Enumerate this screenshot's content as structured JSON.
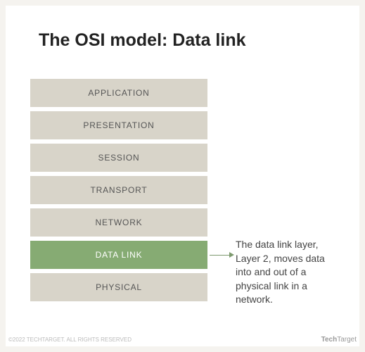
{
  "title": "The OSI model: Data link",
  "layers": [
    {
      "label": "APPLICATION",
      "bg": "#d8d4c9",
      "fg": "#555555",
      "highlight": false
    },
    {
      "label": "PRESENTATION",
      "bg": "#d8d4c9",
      "fg": "#555555",
      "highlight": false
    },
    {
      "label": "SESSION",
      "bg": "#d8d4c9",
      "fg": "#555555",
      "highlight": false
    },
    {
      "label": "TRANSPORT",
      "bg": "#d8d4c9",
      "fg": "#555555",
      "highlight": false
    },
    {
      "label": "NETWORK",
      "bg": "#d8d4c9",
      "fg": "#555555",
      "highlight": false
    },
    {
      "label": "DATA LINK",
      "bg": "#86ab73",
      "fg": "#ffffff",
      "highlight": true
    },
    {
      "label": "PHYSICAL",
      "bg": "#d8d4c9",
      "fg": "#555555",
      "highlight": false
    }
  ],
  "annotation": {
    "index": 5,
    "text": "The data link layer, Layer 2, moves data into and out of a physical link in a network.",
    "arrow_color": "#7d9a6e",
    "arrow_length": 28
  },
  "layout": {
    "layer_height": 40,
    "layer_gap": 6,
    "stack_width": 252
  },
  "footer": {
    "copyright": "©2022 TECHTARGET. ALL RIGHTS RESERVED",
    "brand_prefix": "Tech",
    "brand_suffix": "Target"
  },
  "colors": {
    "page_bg": "#f5f3ef",
    "card_bg": "#ffffff",
    "title": "#222222",
    "annotation_text": "#444444"
  }
}
